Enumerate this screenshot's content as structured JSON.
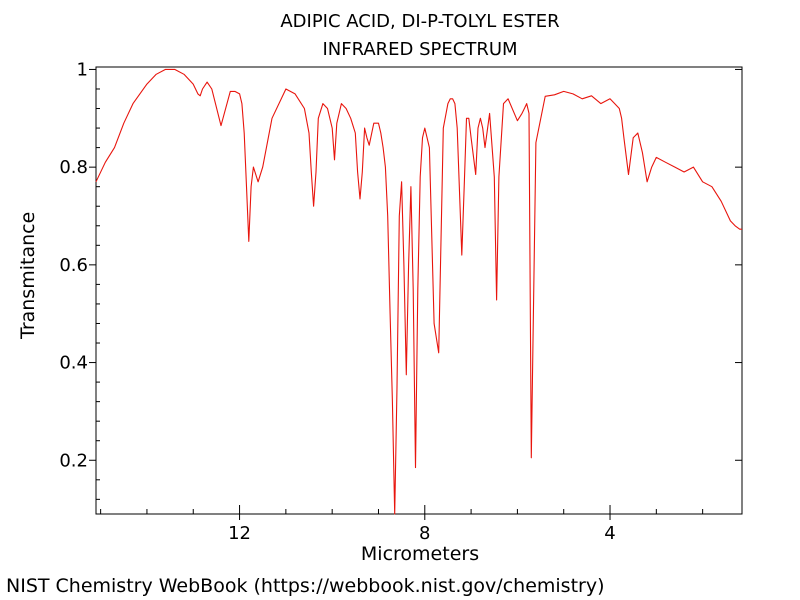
{
  "chart_data": {
    "type": "line",
    "title": "ADIPIC ACID, DI-P-TOLYL ESTER",
    "subtitle": "INFRARED SPECTRUM",
    "xlabel": "Micrometers",
    "ylabel": "Transmitance",
    "xlim": [
      15.1,
      1.15
    ],
    "ylim": [
      0.09,
      1.005
    ],
    "x_ticks": [
      12,
      8,
      4
    ],
    "x_tick_labels": [
      "12",
      "8",
      "4"
    ],
    "y_ticks": [
      0.2,
      0.4,
      0.6,
      0.8,
      1
    ],
    "y_tick_labels": [
      "0.2",
      "0.4",
      "0.6",
      "0.8",
      "1"
    ],
    "grid": false,
    "series": [
      {
        "color": "#e8150d",
        "x": [
          15.1,
          14.9,
          14.7,
          14.5,
          14.3,
          14.0,
          13.8,
          13.6,
          13.4,
          13.2,
          13.0,
          12.9,
          12.85,
          12.8,
          12.7,
          12.6,
          12.4,
          12.2,
          12.1,
          12.0,
          11.95,
          11.9,
          11.85,
          11.8,
          11.75,
          11.7,
          11.6,
          11.5,
          11.3,
          11.0,
          10.8,
          10.6,
          10.5,
          10.45,
          10.4,
          10.35,
          10.3,
          10.2,
          10.1,
          10.0,
          9.95,
          9.9,
          9.8,
          9.7,
          9.6,
          9.5,
          9.45,
          9.4,
          9.35,
          9.3,
          9.25,
          9.2,
          9.1,
          9.0,
          8.95,
          8.9,
          8.85,
          8.8,
          8.75,
          8.7,
          8.65,
          8.6,
          8.55,
          8.5,
          8.45,
          8.4,
          8.35,
          8.3,
          8.25,
          8.2,
          8.15,
          8.1,
          8.05,
          8.0,
          7.9,
          7.8,
          7.7,
          7.6,
          7.5,
          7.45,
          7.4,
          7.35,
          7.3,
          7.2,
          7.15,
          7.1,
          7.05,
          7.0,
          6.9,
          6.85,
          6.8,
          6.75,
          6.7,
          6.6,
          6.5,
          6.45,
          6.4,
          6.3,
          6.2,
          6.0,
          5.9,
          5.85,
          5.8,
          5.75,
          5.7,
          5.6,
          5.4,
          5.2,
          5.0,
          4.8,
          4.6,
          4.4,
          4.2,
          4.0,
          3.9,
          3.8,
          3.75,
          3.7,
          3.6,
          3.5,
          3.4,
          3.3,
          3.2,
          3.1,
          3.0,
          2.8,
          2.6,
          2.4,
          2.2,
          2.0,
          1.8,
          1.6,
          1.4,
          1.3,
          1.2,
          1.15
        ],
        "y": [
          0.77,
          0.81,
          0.84,
          0.89,
          0.93,
          0.97,
          0.99,
          1.0,
          1.0,
          0.99,
          0.97,
          0.95,
          0.946,
          0.96,
          0.974,
          0.96,
          0.885,
          0.955,
          0.955,
          0.95,
          0.93,
          0.87,
          0.76,
          0.648,
          0.76,
          0.8,
          0.77,
          0.8,
          0.9,
          0.96,
          0.95,
          0.92,
          0.87,
          0.79,
          0.72,
          0.79,
          0.9,
          0.93,
          0.92,
          0.88,
          0.815,
          0.89,
          0.93,
          0.92,
          0.9,
          0.87,
          0.79,
          0.735,
          0.79,
          0.88,
          0.86,
          0.845,
          0.89,
          0.89,
          0.87,
          0.84,
          0.8,
          0.7,
          0.5,
          0.32,
          0.09,
          0.35,
          0.7,
          0.77,
          0.6,
          0.375,
          0.6,
          0.76,
          0.55,
          0.185,
          0.55,
          0.78,
          0.86,
          0.88,
          0.84,
          0.48,
          0.42,
          0.88,
          0.93,
          0.94,
          0.94,
          0.93,
          0.88,
          0.62,
          0.76,
          0.9,
          0.9,
          0.86,
          0.785,
          0.88,
          0.9,
          0.88,
          0.84,
          0.91,
          0.78,
          0.528,
          0.78,
          0.93,
          0.94,
          0.895,
          0.91,
          0.92,
          0.93,
          0.91,
          0.205,
          0.85,
          0.945,
          0.948,
          0.955,
          0.95,
          0.94,
          0.946,
          0.93,
          0.94,
          0.93,
          0.92,
          0.9,
          0.86,
          0.785,
          0.86,
          0.87,
          0.83,
          0.77,
          0.8,
          0.82,
          0.81,
          0.8,
          0.79,
          0.8,
          0.77,
          0.76,
          0.73,
          0.69,
          0.68,
          0.673,
          0.673
        ]
      }
    ]
  },
  "credit": "NIST Chemistry WebBook (https://webbook.nist.gov/chemistry)"
}
